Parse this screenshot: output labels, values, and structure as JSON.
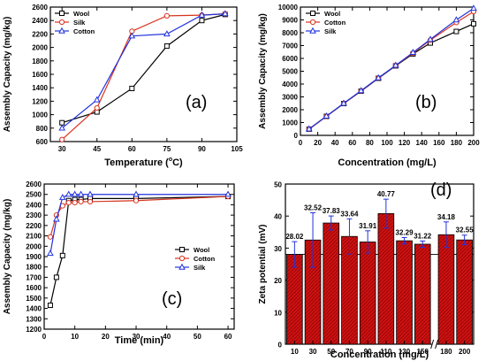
{
  "chart_data": [
    {
      "id": "a",
      "type": "line",
      "panel_label": "(a)",
      "xlabel": "Temperature (",
      "xlabel_degree": "o",
      "xlabel_unit": "C)",
      "ylabel": "Assembly Capacity (mg/kg)",
      "xlim": [
        25,
        105
      ],
      "ylim": [
        600,
        2600
      ],
      "xticks": [
        30,
        45,
        60,
        75,
        90,
        105
      ],
      "yticks": [
        600,
        800,
        1000,
        1200,
        1400,
        1600,
        1800,
        2000,
        2200,
        2400,
        2600
      ],
      "legend_position": "top-left",
      "series": [
        {
          "name": "Wool",
          "color": "#000000",
          "marker": "square",
          "x": [
            30,
            45,
            60,
            75,
            90,
            100
          ],
          "y": [
            880,
            1040,
            1390,
            2020,
            2400,
            2490
          ]
        },
        {
          "name": "Silk",
          "color": "#d9331f",
          "marker": "circle",
          "x": [
            30,
            45,
            60,
            75,
            90,
            100
          ],
          "y": [
            630,
            1100,
            2240,
            2470,
            2480,
            2500
          ]
        },
        {
          "name": "Cotton",
          "color": "#2233dd",
          "marker": "triangle",
          "x": [
            30,
            45,
            60,
            75,
            90,
            100
          ],
          "y": [
            800,
            1220,
            2170,
            2200,
            2480,
            2500
          ]
        }
      ]
    },
    {
      "id": "b",
      "type": "line",
      "panel_label": "(b)",
      "xlabel": "Concentration (mg/L)",
      "ylabel": "Assembly Capacity (mg/kg)",
      "xlim": [
        0,
        200
      ],
      "ylim": [
        0,
        10000
      ],
      "xticks": [
        0,
        20,
        40,
        60,
        80,
        100,
        120,
        140,
        160,
        180,
        200
      ],
      "yticks": [
        0,
        1000,
        2000,
        3000,
        4000,
        5000,
        6000,
        7000,
        8000,
        9000,
        10000
      ],
      "legend_position": "top-left",
      "series": [
        {
          "name": "Wool",
          "color": "#000000",
          "marker": "square",
          "x": [
            10,
            30,
            50,
            70,
            90,
            110,
            130,
            150,
            180,
            200
          ],
          "y": [
            480,
            1480,
            2480,
            3450,
            4450,
            5420,
            6350,
            7200,
            8100,
            8700
          ]
        },
        {
          "name": "Cotton",
          "color": "#d9331f",
          "marker": "circle",
          "x": [
            10,
            30,
            50,
            70,
            90,
            110,
            130,
            150,
            180,
            200
          ],
          "y": [
            490,
            1490,
            2490,
            3470,
            4470,
            5450,
            6420,
            7420,
            8800,
            9650
          ]
        },
        {
          "name": "Silk",
          "color": "#2233dd",
          "marker": "triangle",
          "x": [
            10,
            30,
            50,
            70,
            90,
            110,
            130,
            150,
            180,
            200
          ],
          "y": [
            500,
            1500,
            2500,
            3480,
            4480,
            5460,
            6460,
            7480,
            9000,
            9900
          ]
        }
      ]
    },
    {
      "id": "c",
      "type": "line",
      "panel_label": "(c)",
      "xlabel": "Time (min)",
      "ylabel": "Assembly Capacity (mg/kg)",
      "xlim": [
        0,
        62
      ],
      "ylim": [
        1200,
        2600
      ],
      "xticks": [
        0,
        10,
        20,
        30,
        40,
        50,
        60
      ],
      "yticks": [
        1200,
        1300,
        1400,
        1500,
        1600,
        1700,
        1800,
        1900,
        2000,
        2100,
        2200,
        2300,
        2400,
        2500,
        2600
      ],
      "legend_position": "middle-right",
      "series": [
        {
          "name": "Wool",
          "color": "#000000",
          "marker": "square",
          "x": [
            2,
            4,
            6,
            8,
            10,
            12,
            15,
            30,
            60
          ],
          "y": [
            1430,
            1700,
            1910,
            2440,
            2450,
            2450,
            2460,
            2460,
            2480
          ]
        },
        {
          "name": "Cotton",
          "color": "#d9331f",
          "marker": "circle",
          "x": [
            2,
            4,
            6,
            8,
            10,
            12,
            15,
            30,
            60
          ],
          "y": [
            2090,
            2300,
            2390,
            2420,
            2420,
            2430,
            2430,
            2440,
            2480
          ]
        },
        {
          "name": "Silk",
          "color": "#2233dd",
          "marker": "triangle",
          "x": [
            2,
            4,
            6,
            8,
            10,
            12,
            15,
            30,
            60
          ],
          "y": [
            1930,
            2260,
            2470,
            2500,
            2500,
            2500,
            2500,
            2500,
            2500
          ]
        }
      ]
    },
    {
      "id": "d",
      "type": "bar",
      "panel_label": "(d)",
      "xlabel": "Concentration (mg/L)",
      "ylabel": "Zeta potential (mV)",
      "ylim": [
        0,
        50
      ],
      "yticks": [
        0,
        10,
        20,
        30,
        40,
        50
      ],
      "categories": [
        "10",
        "30",
        "50",
        "70",
        "90",
        "110",
        "130",
        "150",
        "180",
        "200"
      ],
      "values": [
        28.02,
        32.52,
        37.83,
        33.64,
        31.91,
        40.77,
        32.29,
        31.22,
        34.18,
        32.55
      ],
      "errors": [
        4.0,
        8.5,
        2.2,
        5.5,
        3.5,
        4.5,
        1.0,
        1.0,
        4.0,
        1.5
      ],
      "reference_line": 28.02,
      "axis_break_after_index": 7,
      "bar_color": "#cc1111",
      "error_color": "#2233dd"
    }
  ]
}
